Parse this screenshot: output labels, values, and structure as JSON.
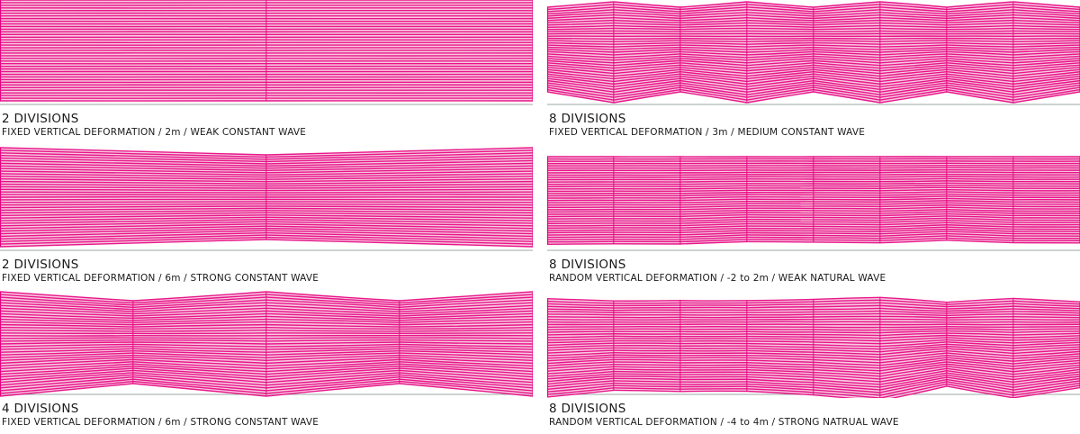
{
  "panels": [
    {
      "title": "2 DIVISIONS",
      "subtitle": "FIXED VERTICAL DEFORMATION / 2m / WEAK CONSTANT WAVE",
      "divisions": 2,
      "deformation": "fixed",
      "wave": "weak"
    },
    {
      "title": "8 DIVISIONS",
      "subtitle": "FIXED VERTICAL DEFORMATION / 3m / MEDIUM CONSTANT WAVE",
      "divisions": 8,
      "deformation": "fixed",
      "wave": "medium"
    },
    {
      "title": "2 DIVISIONS",
      "subtitle": "FIXED VERTICAL DEFORMATION / 6m / STRONG CONSTANT WAVE",
      "divisions": 2,
      "deformation": "fixed",
      "wave": "strong"
    },
    {
      "title": "8 DIVISIONS",
      "subtitle": "RANDOM VERTICAL DEFORMATION / -2 to 2m / WEAK NATURAL WAVE",
      "divisions": 8,
      "deformation": "random",
      "wave": "weak"
    },
    {
      "title": "4 DIVISIONS",
      "subtitle": "FIXED VERTICAL DEFORMATION / 6m / STRONG CONSTANT WAVE",
      "divisions": 4,
      "deformation": "fixed",
      "wave": "strong"
    },
    {
      "title": "8 DIVISIONS",
      "subtitle": "RANDOM VERTICAL DEFORMATION / -4 to 4m / STRONG NATRUAL WAVE",
      "divisions": 8,
      "deformation": "random",
      "wave": "strong"
    }
  ],
  "colors": {
    "stripe": "#e6007e",
    "base": "#f2a6cf",
    "ground": "#9aa7a4"
  }
}
